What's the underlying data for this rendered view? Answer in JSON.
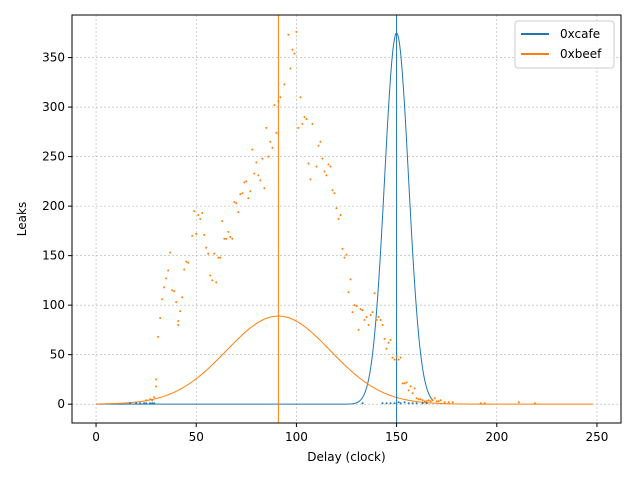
{
  "chart_data": {
    "type": "scatter",
    "xlabel": "Delay (clock)",
    "ylabel": "Leaks",
    "xlim": [
      -12,
      262
    ],
    "ylim": [
      -19,
      393
    ],
    "xticks": [
      0,
      50,
      100,
      150,
      200,
      250
    ],
    "yticks": [
      0,
      50,
      100,
      150,
      200,
      250,
      300,
      350
    ],
    "grid": true,
    "legend_position": "top-right",
    "series": [
      {
        "name": "0xcafe",
        "color": "#1f77b4",
        "vline": 150,
        "fit": {
          "amplitude": 375,
          "mean": 150,
          "sigma": 6,
          "x_range": [
            0,
            168
          ]
        },
        "points": [
          [
            17,
            1
          ],
          [
            20,
            1
          ],
          [
            22,
            1
          ],
          [
            24,
            1
          ],
          [
            25,
            1
          ],
          [
            27,
            1
          ],
          [
            28,
            1
          ],
          [
            29,
            1
          ],
          [
            133,
            1
          ],
          [
            143,
            1
          ],
          [
            145,
            1
          ],
          [
            147,
            1
          ],
          [
            149,
            1
          ],
          [
            151,
            2
          ],
          [
            152,
            1
          ],
          [
            154,
            2
          ],
          [
            156,
            1
          ],
          [
            158,
            1
          ],
          [
            160,
            1
          ],
          [
            163,
            1
          ],
          [
            165,
            1
          ]
        ]
      },
      {
        "name": "0xbeef",
        "color": "#ff7f0e",
        "vline": 91,
        "fit": {
          "amplitude": 89,
          "mean": 91,
          "sigma": 26,
          "x_range": [
            0,
            248
          ]
        },
        "points": [
          [
            25,
            4
          ],
          [
            27,
            5
          ],
          [
            28,
            4
          ],
          [
            29,
            7
          ],
          [
            30,
            18
          ],
          [
            30,
            25
          ],
          [
            31,
            68
          ],
          [
            32,
            87
          ],
          [
            33,
            106
          ],
          [
            34,
            118
          ],
          [
            35,
            127
          ],
          [
            36,
            135
          ],
          [
            37,
            153
          ],
          [
            38,
            115
          ],
          [
            39,
            114
          ],
          [
            40,
            103
          ],
          [
            41,
            80
          ],
          [
            41,
            84
          ],
          [
            42,
            94
          ],
          [
            43,
            108
          ],
          [
            44,
            136
          ],
          [
            45,
            144
          ],
          [
            46,
            143
          ],
          [
            48,
            170
          ],
          [
            49,
            195
          ],
          [
            50,
            172
          ],
          [
            51,
            191
          ],
          [
            52,
            187
          ],
          [
            53,
            193
          ],
          [
            54,
            171
          ],
          [
            55,
            158
          ],
          [
            56,
            152
          ],
          [
            57,
            130
          ],
          [
            58,
            125
          ],
          [
            59,
            152
          ],
          [
            60,
            123
          ],
          [
            61,
            148
          ],
          [
            62,
            148
          ],
          [
            63,
            185
          ],
          [
            64,
            167
          ],
          [
            65,
            167
          ],
          [
            66,
            174
          ],
          [
            67,
            169
          ],
          [
            68,
            167
          ],
          [
            69,
            204
          ],
          [
            70,
            203
          ],
          [
            71,
            194
          ],
          [
            72,
            212
          ],
          [
            73,
            213
          ],
          [
            74,
            224
          ],
          [
            75,
            225
          ],
          [
            76,
            208
          ],
          [
            77,
            215
          ],
          [
            78,
            257
          ],
          [
            79,
            233
          ],
          [
            80,
            244
          ],
          [
            81,
            231
          ],
          [
            82,
            226
          ],
          [
            83,
            248
          ],
          [
            84,
            218
          ],
          [
            85,
            279
          ],
          [
            86,
            250
          ],
          [
            87,
            265
          ],
          [
            88,
            259
          ],
          [
            89,
            302
          ],
          [
            90,
            274
          ],
          [
            91,
            306
          ],
          [
            92,
            310
          ],
          [
            94,
            323
          ],
          [
            96,
            373
          ],
          [
            97,
            339
          ],
          [
            98,
            358
          ],
          [
            99,
            354
          ],
          [
            100,
            376
          ],
          [
            101,
            279
          ],
          [
            102,
            310
          ],
          [
            103,
            283
          ],
          [
            104,
            290
          ],
          [
            105,
            288
          ],
          [
            106,
            243
          ],
          [
            107,
            227
          ],
          [
            108,
            283
          ],
          [
            110,
            240
          ],
          [
            111,
            261
          ],
          [
            112,
            265
          ],
          [
            113,
            248
          ],
          [
            114,
            235
          ],
          [
            115,
            231
          ],
          [
            116,
            242
          ],
          [
            117,
            240
          ],
          [
            118,
            216
          ],
          [
            119,
            213
          ],
          [
            120,
            198
          ],
          [
            121,
            187
          ],
          [
            122,
            191
          ],
          [
            123,
            157
          ],
          [
            124,
            148
          ],
          [
            125,
            151
          ],
          [
            126,
            113
          ],
          [
            127,
            126
          ],
          [
            128,
            93
          ],
          [
            129,
            100
          ],
          [
            130,
            99
          ],
          [
            131,
            75
          ],
          [
            132,
            96
          ],
          [
            133,
            95
          ],
          [
            134,
            85
          ],
          [
            135,
            88
          ],
          [
            136,
            80
          ],
          [
            137,
            90
          ],
          [
            138,
            93
          ],
          [
            139,
            112
          ],
          [
            140,
            85
          ],
          [
            141,
            88
          ],
          [
            142,
            85
          ],
          [
            143,
            80
          ],
          [
            144,
            66
          ],
          [
            145,
            56
          ],
          [
            146,
            62
          ],
          [
            147,
            65
          ],
          [
            148,
            47
          ],
          [
            149,
            45
          ],
          [
            150,
            48
          ],
          [
            151,
            45
          ],
          [
            152,
            47
          ],
          [
            153,
            21
          ],
          [
            154,
            21
          ],
          [
            155,
            22
          ],
          [
            156,
            14
          ],
          [
            157,
            18
          ],
          [
            158,
            11
          ],
          [
            159,
            16
          ],
          [
            160,
            6
          ],
          [
            161,
            5
          ],
          [
            162,
            5
          ],
          [
            163,
            4
          ],
          [
            164,
            3
          ],
          [
            165,
            3
          ],
          [
            166,
            4
          ],
          [
            167,
            3
          ],
          [
            168,
            4
          ],
          [
            169,
            6
          ],
          [
            170,
            3
          ],
          [
            171,
            3
          ],
          [
            172,
            4
          ],
          [
            174,
            2
          ],
          [
            176,
            2
          ],
          [
            178,
            2
          ],
          [
            192,
            1
          ],
          [
            194,
            1
          ],
          [
            211,
            2
          ],
          [
            219,
            1
          ]
        ]
      }
    ]
  }
}
